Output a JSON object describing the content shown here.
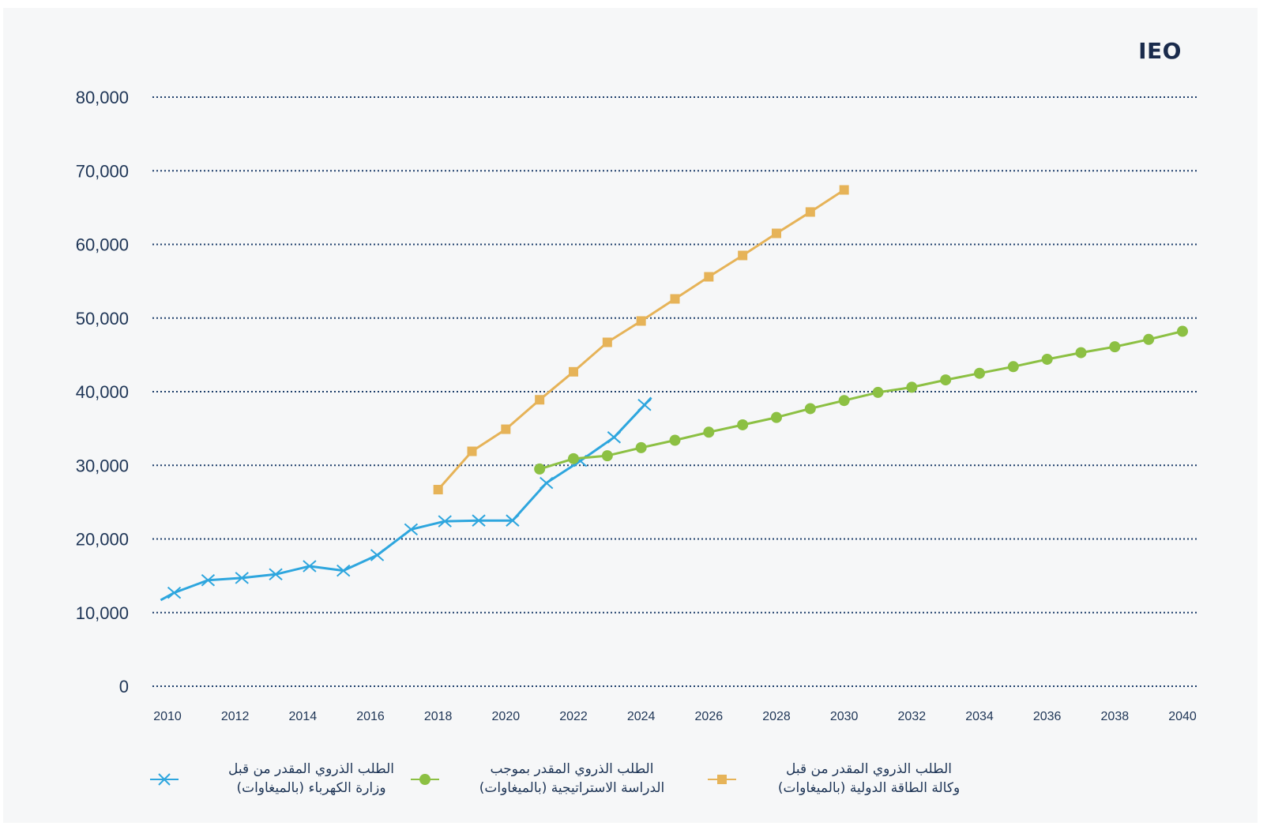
{
  "brand": "IEO",
  "chart_data": {
    "type": "line",
    "xlim": [
      2010,
      2040
    ],
    "ylim": [
      0,
      80000
    ],
    "grid": true,
    "grid_style": "dotted horizontal",
    "legend_position": "bottom",
    "x_ticks": [
      2010,
      2012,
      2014,
      2016,
      2018,
      2020,
      2022,
      2024,
      2026,
      2028,
      2030,
      2032,
      2034,
      2036,
      2038,
      2040
    ],
    "y_ticks": [
      0,
      10000,
      20000,
      30000,
      40000,
      50000,
      60000,
      70000,
      80000
    ],
    "y_tick_labels": [
      "0",
      "10,000",
      "20,000",
      "30,000",
      "40,000",
      "50,000",
      "60,000",
      "70,000",
      "80,000"
    ],
    "x_tick_labels": [
      "2010",
      "2012",
      "2014",
      "2016",
      "2018",
      "2020",
      "2022",
      "2024",
      "2026",
      "2028",
      "2030",
      "2032",
      "2034",
      "2036",
      "2038",
      "2040"
    ],
    "series": [
      {
        "name": "الطلب الذروي المقدر من قبل\nوزارة الكهرباء (بالميغاوات)",
        "marker": "x",
        "color": "#2ea6de",
        "points": [
          [
            2009.8,
            11700
          ],
          [
            2010.2,
            12700
          ],
          [
            2011.2,
            14400
          ],
          [
            2012.2,
            14700
          ],
          [
            2013.2,
            15200
          ],
          [
            2014.2,
            16300
          ],
          [
            2015.2,
            15700
          ],
          [
            2016.2,
            17800
          ],
          [
            2017.2,
            21300
          ],
          [
            2018.2,
            22400
          ],
          [
            2019.2,
            22500
          ],
          [
            2020.2,
            22500
          ],
          [
            2021.2,
            27600
          ],
          [
            2022.2,
            30600
          ],
          [
            2023.2,
            33800
          ],
          [
            2024.1,
            38200
          ],
          [
            2024.3,
            39200
          ]
        ]
      },
      {
        "name": "الطلب الذروي المقدر بموجب\nالدراسة الاستراتيجية (بالميغاوات)",
        "marker": "circle",
        "color": "#8cc043",
        "points": [
          [
            2021,
            29500
          ],
          [
            2022,
            30900
          ],
          [
            2023,
            31300
          ],
          [
            2024,
            32400
          ],
          [
            2025,
            33400
          ],
          [
            2026,
            34500
          ],
          [
            2027,
            35500
          ],
          [
            2028,
            36500
          ],
          [
            2029,
            37700
          ],
          [
            2030,
            38800
          ],
          [
            2031,
            39900
          ],
          [
            2032,
            40600
          ],
          [
            2033,
            41600
          ],
          [
            2034,
            42500
          ],
          [
            2035,
            43400
          ],
          [
            2036,
            44400
          ],
          [
            2037,
            45300
          ],
          [
            2038,
            46100
          ],
          [
            2039,
            47100
          ],
          [
            2040,
            48200
          ]
        ]
      },
      {
        "name": "الطلب الذروي المقدر من قبل\nوكالة الطاقة الدولية (بالميغاوات)",
        "marker": "square",
        "color": "#e6b358",
        "points": [
          [
            2018,
            26700
          ],
          [
            2019,
            31900
          ],
          [
            2020,
            34900
          ],
          [
            2021,
            38900
          ],
          [
            2022,
            42700
          ],
          [
            2023,
            46700
          ],
          [
            2024,
            49600
          ],
          [
            2025,
            52600
          ],
          [
            2026,
            55600
          ],
          [
            2027,
            58500
          ],
          [
            2028,
            61500
          ],
          [
            2029,
            64400
          ],
          [
            2030,
            67400
          ]
        ]
      }
    ]
  }
}
